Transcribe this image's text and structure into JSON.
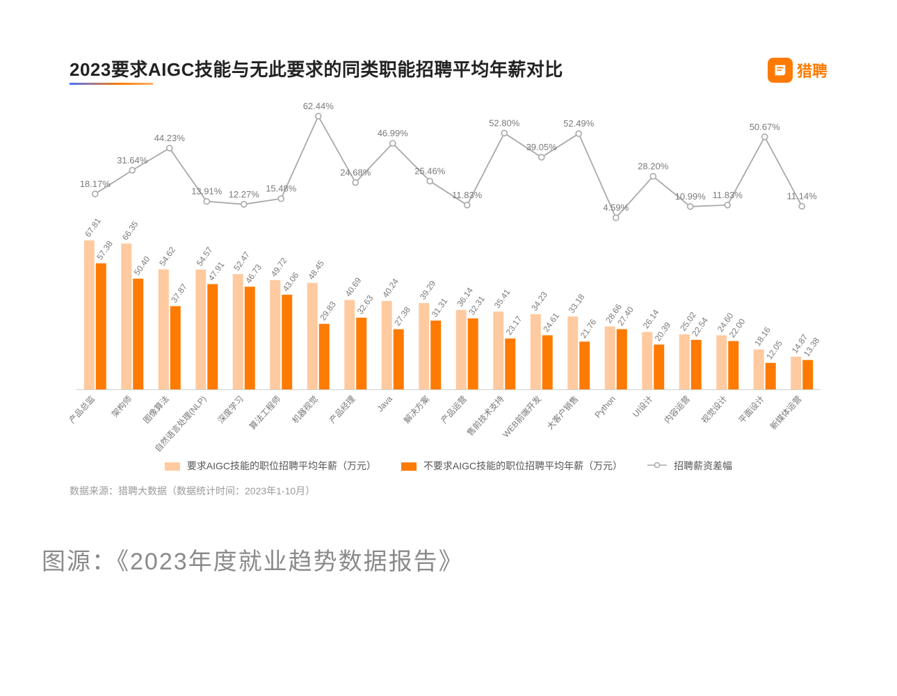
{
  "chart": {
    "type": "bar+line",
    "title": "2023要求AIGC技能与无此要求的同类职能招聘平均年薪对比",
    "title_fontsize": 26,
    "title_color": "#222222",
    "brand_text": "猎聘",
    "brand_color": "#ff7a00",
    "categories": [
      "产品总监",
      "架构师",
      "图像算法",
      "自然语言处理(NLP)",
      "深度学习",
      "算法工程师",
      "机器视觉",
      "产品经理",
      "Java",
      "解决方案",
      "产品运营",
      "售前技术支持",
      "WEB前端开发",
      "大客户销售",
      "Python",
      "UI设计",
      "内容运营",
      "视觉设计",
      "平面设计",
      "新媒体运营"
    ],
    "series1": {
      "name": "要求AIGC技能的职位招聘平均年薪（万元）",
      "color": "#ffcaa0",
      "values": [
        67.81,
        66.35,
        54.62,
        54.57,
        52.47,
        49.72,
        48.45,
        40.69,
        40.24,
        39.29,
        36.14,
        35.41,
        34.23,
        33.18,
        28.66,
        26.14,
        25.02,
        24.6,
        18.16,
        14.87
      ]
    },
    "series2": {
      "name": "不要求AIGC技能的职位招聘平均年薪（万元）",
      "color": "#ff7a00",
      "values": [
        57.38,
        50.4,
        37.87,
        47.91,
        46.73,
        43.06,
        29.83,
        32.63,
        27.38,
        31.31,
        32.31,
        23.17,
        24.61,
        21.76,
        27.4,
        20.39,
        22.54,
        22.0,
        12.05,
        13.38
      ]
    },
    "line": {
      "name": "招聘薪资差幅",
      "color": "#a8a8a8",
      "marker_color": "#a8a8a8",
      "values_pct": [
        18.17,
        31.64,
        44.23,
        13.91,
        12.27,
        15.48,
        62.44,
        24.68,
        46.99,
        25.46,
        11.83,
        52.8,
        39.05,
        52.49,
        4.59,
        28.2,
        10.99,
        11.83,
        50.67,
        11.14
      ]
    },
    "bar_value_fontsize": 12,
    "bar_value_color": "#7a7a7a",
    "pct_label_fontsize": 13,
    "pct_label_color": "#7a7a7a",
    "x_label_fontsize": 12,
    "x_label_color": "#777777",
    "background_color": "#ffffff",
    "bar_group_gap": 0.45,
    "bar_width_ratio": 0.28,
    "bar_ylim": [
      0,
      70
    ],
    "line_ylim_pct": [
      0,
      70
    ],
    "legend": {
      "label1": "要求AIGC技能的职位招聘平均年薪（万元）",
      "label2": "不要求AIGC技能的职位招聘平均年薪（万元）",
      "label3": "招聘薪资差幅"
    }
  },
  "source_note": "数据来源：猎聘大数据（数据统计时间：2023年1-10月）",
  "caption": "图源：《2023年度就业趋势数据报告》"
}
